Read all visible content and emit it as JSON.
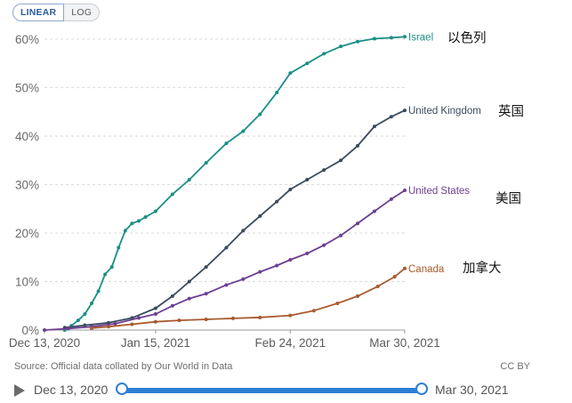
{
  "scale_toggle": {
    "linear_label": "LINEAR",
    "log_label": "LOG",
    "active": "LINEAR"
  },
  "source_note": "Source: Official data collated by Our World in Data",
  "license": "CC BY",
  "timeline": {
    "start_label": "Dec 13, 2020",
    "end_label": "Mar 30, 2021"
  },
  "chart_data": {
    "type": "line",
    "title": "",
    "xlabel": "",
    "ylabel": "",
    "ylim": [
      0,
      60
    ],
    "yticks": [
      0,
      10,
      20,
      30,
      40,
      50,
      60
    ],
    "ytick_labels": [
      "0%",
      "10%",
      "20%",
      "30%",
      "40%",
      "50%",
      "60%"
    ],
    "x_range": [
      "2020-12-13",
      "2021-03-30"
    ],
    "xticks": [
      "2020-12-13",
      "2021-01-15",
      "2021-02-24",
      "2021-03-30"
    ],
    "xtick_labels": [
      "Dec 13, 2020",
      "Jan 15, 2021",
      "Feb 24, 2021",
      "Mar 30, 2021"
    ],
    "grid": "horizontal dashed",
    "series": [
      {
        "name": "Israel",
        "annotation": "以色列",
        "color": "#1a8f86",
        "points": [
          [
            "2020-12-19",
            0
          ],
          [
            "2020-12-21",
            0.9
          ],
          [
            "2020-12-23",
            2
          ],
          [
            "2020-12-25",
            3.3
          ],
          [
            "2020-12-27",
            5.5
          ],
          [
            "2020-12-29",
            8
          ],
          [
            "2020-12-31",
            11.5
          ],
          [
            "2021-01-02",
            13
          ],
          [
            "2021-01-04",
            17
          ],
          [
            "2021-01-06",
            20.5
          ],
          [
            "2021-01-08",
            22
          ],
          [
            "2021-01-10",
            22.5
          ],
          [
            "2021-01-12",
            23.3
          ],
          [
            "2021-01-15",
            24.5
          ],
          [
            "2021-01-20",
            28
          ],
          [
            "2021-01-25",
            31
          ],
          [
            "2021-01-30",
            34.5
          ],
          [
            "2021-02-05",
            38.5
          ],
          [
            "2021-02-10",
            41
          ],
          [
            "2021-02-15",
            44.5
          ],
          [
            "2021-02-20",
            49
          ],
          [
            "2021-02-24",
            53
          ],
          [
            "2021-03-01",
            55
          ],
          [
            "2021-03-06",
            57
          ],
          [
            "2021-03-11",
            58.5
          ],
          [
            "2021-03-16",
            59.5
          ],
          [
            "2021-03-21",
            60.1
          ],
          [
            "2021-03-26",
            60.3
          ],
          [
            "2021-03-30",
            60.5
          ]
        ]
      },
      {
        "name": "United Kingdom",
        "annotation": "英国",
        "color": "#3b4a60",
        "points": [
          [
            "2020-12-19",
            0.5
          ],
          [
            "2020-12-25",
            1
          ],
          [
            "2021-01-01",
            1.5
          ],
          [
            "2021-01-08",
            2.5
          ],
          [
            "2021-01-15",
            4.5
          ],
          [
            "2021-01-20",
            7
          ],
          [
            "2021-01-25",
            10
          ],
          [
            "2021-01-30",
            13
          ],
          [
            "2021-02-05",
            17
          ],
          [
            "2021-02-10",
            20.5
          ],
          [
            "2021-02-15",
            23.5
          ],
          [
            "2021-02-20",
            26.5
          ],
          [
            "2021-02-24",
            29
          ],
          [
            "2021-03-01",
            31
          ],
          [
            "2021-03-06",
            33
          ],
          [
            "2021-03-11",
            35
          ],
          [
            "2021-03-16",
            38
          ],
          [
            "2021-03-21",
            42
          ],
          [
            "2021-03-26",
            44
          ],
          [
            "2021-03-30",
            45.3
          ]
        ]
      },
      {
        "name": "United States",
        "annotation": "美国",
        "color": "#6d3e91",
        "points": [
          [
            "2020-12-13",
            0
          ],
          [
            "2020-12-20",
            0.3
          ],
          [
            "2020-12-27",
            0.7
          ],
          [
            "2021-01-03",
            1.3
          ],
          [
            "2021-01-10",
            2.5
          ],
          [
            "2021-01-15",
            3.3
          ],
          [
            "2021-01-20",
            5
          ],
          [
            "2021-01-25",
            6.5
          ],
          [
            "2021-01-30",
            7.5
          ],
          [
            "2021-02-05",
            9.3
          ],
          [
            "2021-02-10",
            10.5
          ],
          [
            "2021-02-15",
            12
          ],
          [
            "2021-02-20",
            13.3
          ],
          [
            "2021-02-24",
            14.5
          ],
          [
            "2021-03-01",
            15.8
          ],
          [
            "2021-03-06",
            17.5
          ],
          [
            "2021-03-11",
            19.5
          ],
          [
            "2021-03-16",
            22
          ],
          [
            "2021-03-21",
            24.5
          ],
          [
            "2021-03-26",
            27
          ],
          [
            "2021-03-30",
            28.8
          ]
        ]
      },
      {
        "name": "Canada",
        "annotation": "加拿大",
        "color": "#a85a2e",
        "points": [
          [
            "2020-12-27",
            0.4
          ],
          [
            "2021-01-01",
            0.7
          ],
          [
            "2021-01-08",
            1.2
          ],
          [
            "2021-01-15",
            1.7
          ],
          [
            "2021-01-22",
            2
          ],
          [
            "2021-01-30",
            2.2
          ],
          [
            "2021-02-07",
            2.4
          ],
          [
            "2021-02-15",
            2.6
          ],
          [
            "2021-02-24",
            3
          ],
          [
            "2021-03-03",
            4
          ],
          [
            "2021-03-10",
            5.5
          ],
          [
            "2021-03-16",
            7
          ],
          [
            "2021-03-22",
            9
          ],
          [
            "2021-03-27",
            11
          ],
          [
            "2021-03-30",
            12.7
          ]
        ]
      }
    ]
  }
}
